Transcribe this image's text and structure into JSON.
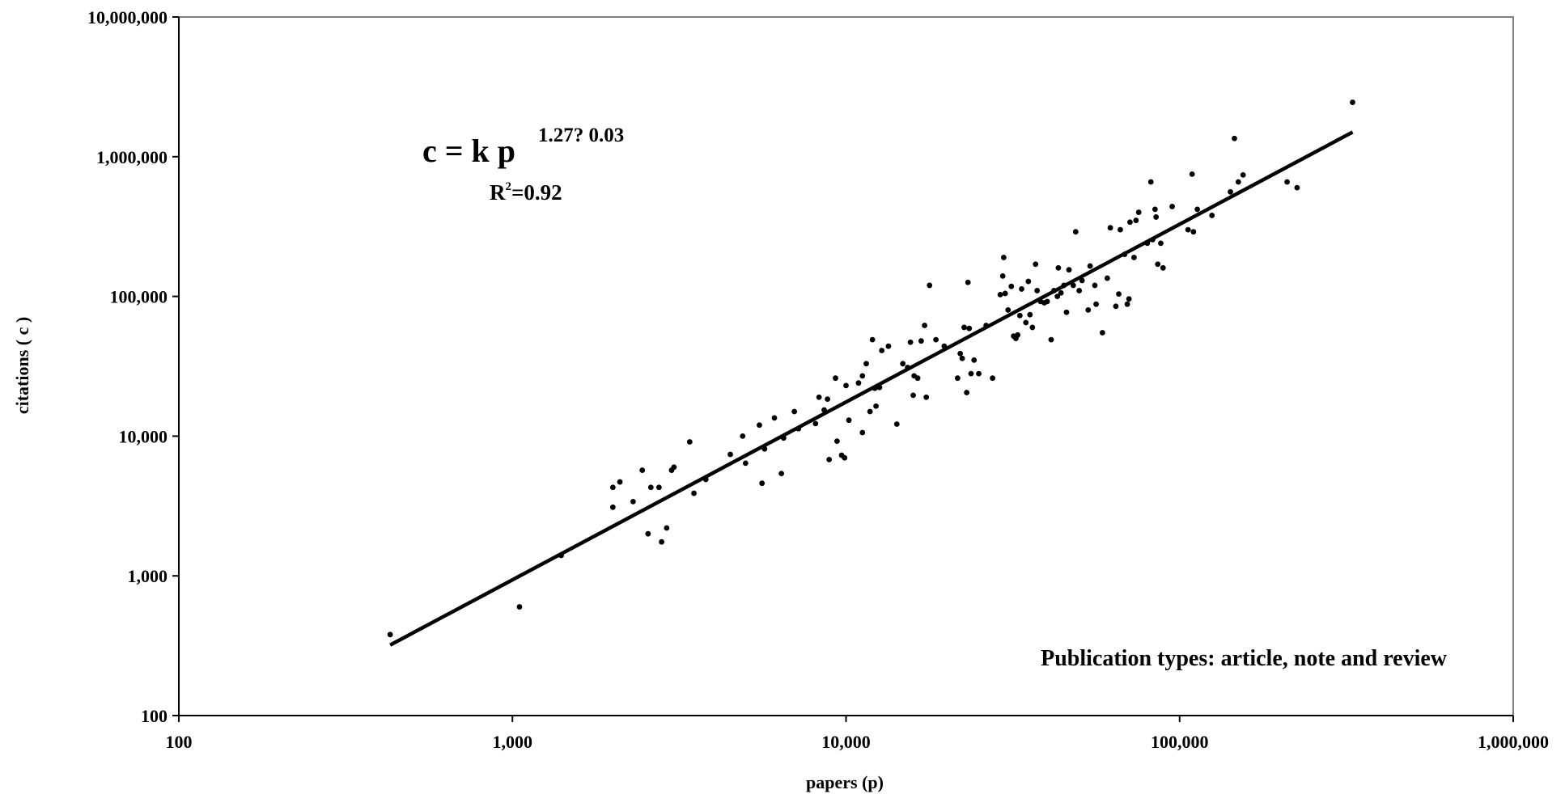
{
  "chart_data": {
    "type": "scatter",
    "title": "",
    "xlabel": "papers (p)",
    "ylabel": "citations ( c )",
    "x_scale": "log",
    "y_scale": "log",
    "xlim": [
      100,
      1000000
    ],
    "ylim": [
      100,
      10000000
    ],
    "x_ticks": [
      100,
      1000,
      10000,
      100000,
      1000000
    ],
    "x_tick_labels": [
      "100",
      "1,000",
      "10,000",
      "100,000",
      "1,000,000"
    ],
    "y_ticks": [
      100,
      1000,
      10000,
      100000,
      1000000,
      10000000
    ],
    "y_tick_labels": [
      "100",
      "1,000",
      "10,000",
      "100,000",
      "1,000,000",
      "10,000,000"
    ],
    "grid": false,
    "legend": "none",
    "annotations": {
      "equation_main": "c = k p",
      "equation_exponent": "1.27? 0.03",
      "r2_prefix": "R",
      "r2_sup": "2",
      "r2_value": "=0.92",
      "note": "Publication types: article, note and review"
    },
    "fit_line": {
      "x": [
        430,
        330000
      ],
      "y": [
        320,
        1500000
      ]
    },
    "points": [
      [
        430,
        380
      ],
      [
        1050,
        600
      ],
      [
        1400,
        1400
      ],
      [
        2000,
        4300
      ],
      [
        2000,
        3100
      ],
      [
        2100,
        4700
      ],
      [
        2300,
        3400
      ],
      [
        2450,
        5700
      ],
      [
        2550,
        2000
      ],
      [
        2600,
        4300
      ],
      [
        2750,
        4300
      ],
      [
        2800,
        1750
      ],
      [
        2900,
        2200
      ],
      [
        3000,
        5700
      ],
      [
        3050,
        6000
      ],
      [
        3400,
        9100
      ],
      [
        3500,
        3900
      ],
      [
        3800,
        4900
      ],
      [
        4500,
        7400
      ],
      [
        4900,
        10000
      ],
      [
        5000,
        6400
      ],
      [
        5500,
        12000
      ],
      [
        5600,
        4600
      ],
      [
        5700,
        8100
      ],
      [
        6100,
        13500
      ],
      [
        6400,
        5400
      ],
      [
        6500,
        9700
      ],
      [
        7000,
        15000
      ],
      [
        7200,
        11300
      ],
      [
        8100,
        12300
      ],
      [
        8300,
        19000
      ],
      [
        8600,
        15400
      ],
      [
        8800,
        18400
      ],
      [
        8900,
        6800
      ],
      [
        9300,
        26000
      ],
      [
        9400,
        9200
      ],
      [
        9700,
        7300
      ],
      [
        9900,
        7000
      ],
      [
        10000,
        23000
      ],
      [
        10200,
        13000
      ],
      [
        10900,
        24000
      ],
      [
        11200,
        10600
      ],
      [
        11200,
        27000
      ],
      [
        11500,
        33000
      ],
      [
        11800,
        15000
      ],
      [
        12000,
        49000
      ],
      [
        12200,
        22000
      ],
      [
        12300,
        16400
      ],
      [
        12600,
        22300
      ],
      [
        12800,
        41000
      ],
      [
        13400,
        44000
      ],
      [
        14200,
        12200
      ],
      [
        14800,
        33000
      ],
      [
        15300,
        31000
      ],
      [
        15600,
        47000
      ],
      [
        15900,
        19600
      ],
      [
        16000,
        27000
      ],
      [
        16400,
        26000
      ],
      [
        16800,
        48000
      ],
      [
        17200,
        62000
      ],
      [
        17400,
        19000
      ],
      [
        17800,
        120000
      ],
      [
        18600,
        49000
      ],
      [
        19700,
        44000
      ],
      [
        21600,
        26000
      ],
      [
        22000,
        39000
      ],
      [
        22300,
        36000
      ],
      [
        22600,
        60000
      ],
      [
        23000,
        20500
      ],
      [
        23200,
        126000
      ],
      [
        23400,
        59000
      ],
      [
        23700,
        28000
      ],
      [
        24200,
        35000
      ],
      [
        25000,
        28000
      ],
      [
        26300,
        62000
      ],
      [
        27500,
        26000
      ],
      [
        29000,
        103000
      ],
      [
        29500,
        140000
      ],
      [
        29700,
        190000
      ],
      [
        30000,
        105000
      ],
      [
        30600,
        80000
      ],
      [
        31300,
        118000
      ],
      [
        31800,
        52000
      ],
      [
        32300,
        50000
      ],
      [
        32700,
        53000
      ],
      [
        33200,
        73000
      ],
      [
        33600,
        113000
      ],
      [
        34600,
        65000
      ],
      [
        35200,
        128000
      ],
      [
        35600,
        74000
      ],
      [
        36200,
        60000
      ],
      [
        37000,
        170000
      ],
      [
        37400,
        110000
      ],
      [
        38300,
        92000
      ],
      [
        39300,
        90000
      ],
      [
        40100,
        92000
      ],
      [
        41200,
        49000
      ],
      [
        42000,
        110000
      ],
      [
        43000,
        100000
      ],
      [
        43300,
        160000
      ],
      [
        44100,
        106000
      ],
      [
        45000,
        120000
      ],
      [
        45800,
        77000
      ],
      [
        46600,
        155000
      ],
      [
        48000,
        120000
      ],
      [
        48800,
        290000
      ],
      [
        50000,
        110000
      ],
      [
        51000,
        130000
      ],
      [
        53200,
        80000
      ],
      [
        53900,
        165000
      ],
      [
        55700,
        120000
      ],
      [
        56200,
        88000
      ],
      [
        58700,
        55000
      ],
      [
        60700,
        135000
      ],
      [
        62000,
        310000
      ],
      [
        64400,
        85000
      ],
      [
        65700,
        104000
      ],
      [
        66400,
        300000
      ],
      [
        68400,
        200000
      ],
      [
        69700,
        88000
      ],
      [
        70500,
        96000
      ],
      [
        71000,
        340000
      ],
      [
        73000,
        190000
      ],
      [
        74000,
        350000
      ],
      [
        75400,
        400000
      ],
      [
        80000,
        240000
      ],
      [
        82000,
        660000
      ],
      [
        83000,
        255000
      ],
      [
        84400,
        420000
      ],
      [
        85000,
        370000
      ],
      [
        86000,
        170000
      ],
      [
        87800,
        240000
      ],
      [
        89200,
        160000
      ],
      [
        95000,
        440000
      ],
      [
        106000,
        300000
      ],
      [
        109000,
        750000
      ],
      [
        110000,
        290000
      ],
      [
        113000,
        420000
      ],
      [
        125000,
        380000
      ],
      [
        142000,
        560000
      ],
      [
        146000,
        1350000
      ],
      [
        150000,
        660000
      ],
      [
        155000,
        740000
      ],
      [
        210000,
        660000
      ],
      [
        225000,
        600000
      ],
      [
        330000,
        2450000
      ]
    ]
  }
}
